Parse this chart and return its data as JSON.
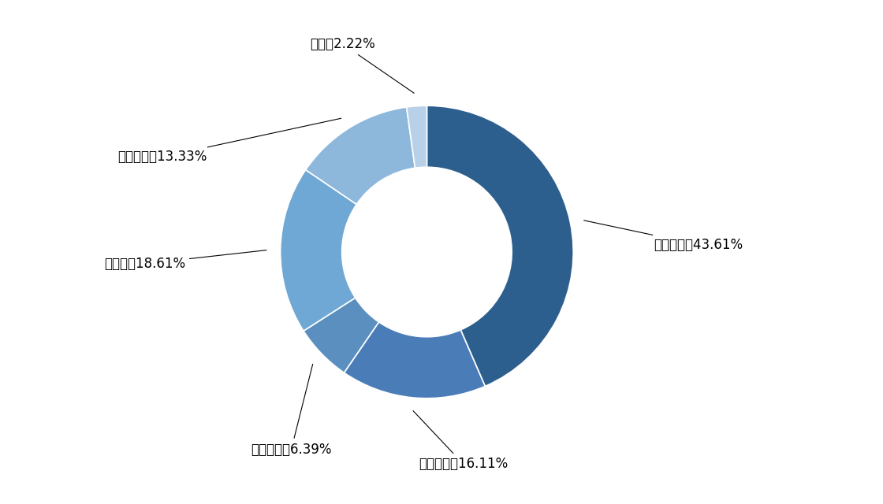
{
  "labels": [
    "金融机构",
    "基础产业",
    "工商企业",
    "房地产",
    "证券市场",
    "其他"
  ],
  "values": [
    43.61,
    16.11,
    6.39,
    18.61,
    13.33,
    2.22
  ],
  "colors": [
    "#2d5f8e",
    "#4a7db8",
    "#5a8fc0",
    "#6fa8d4",
    "#8db8dc",
    "#b8d0e8"
  ],
  "label_texts": [
    "金融机构：43.61%",
    "基础产业：16.11%",
    "工商企业：6.39%",
    "房地产：18.61%",
    "证券市场：13.33%",
    "其他：2.22%"
  ],
  "background_color": "#ffffff",
  "font_size": 12,
  "startangle": 90,
  "donut_width": 0.42
}
